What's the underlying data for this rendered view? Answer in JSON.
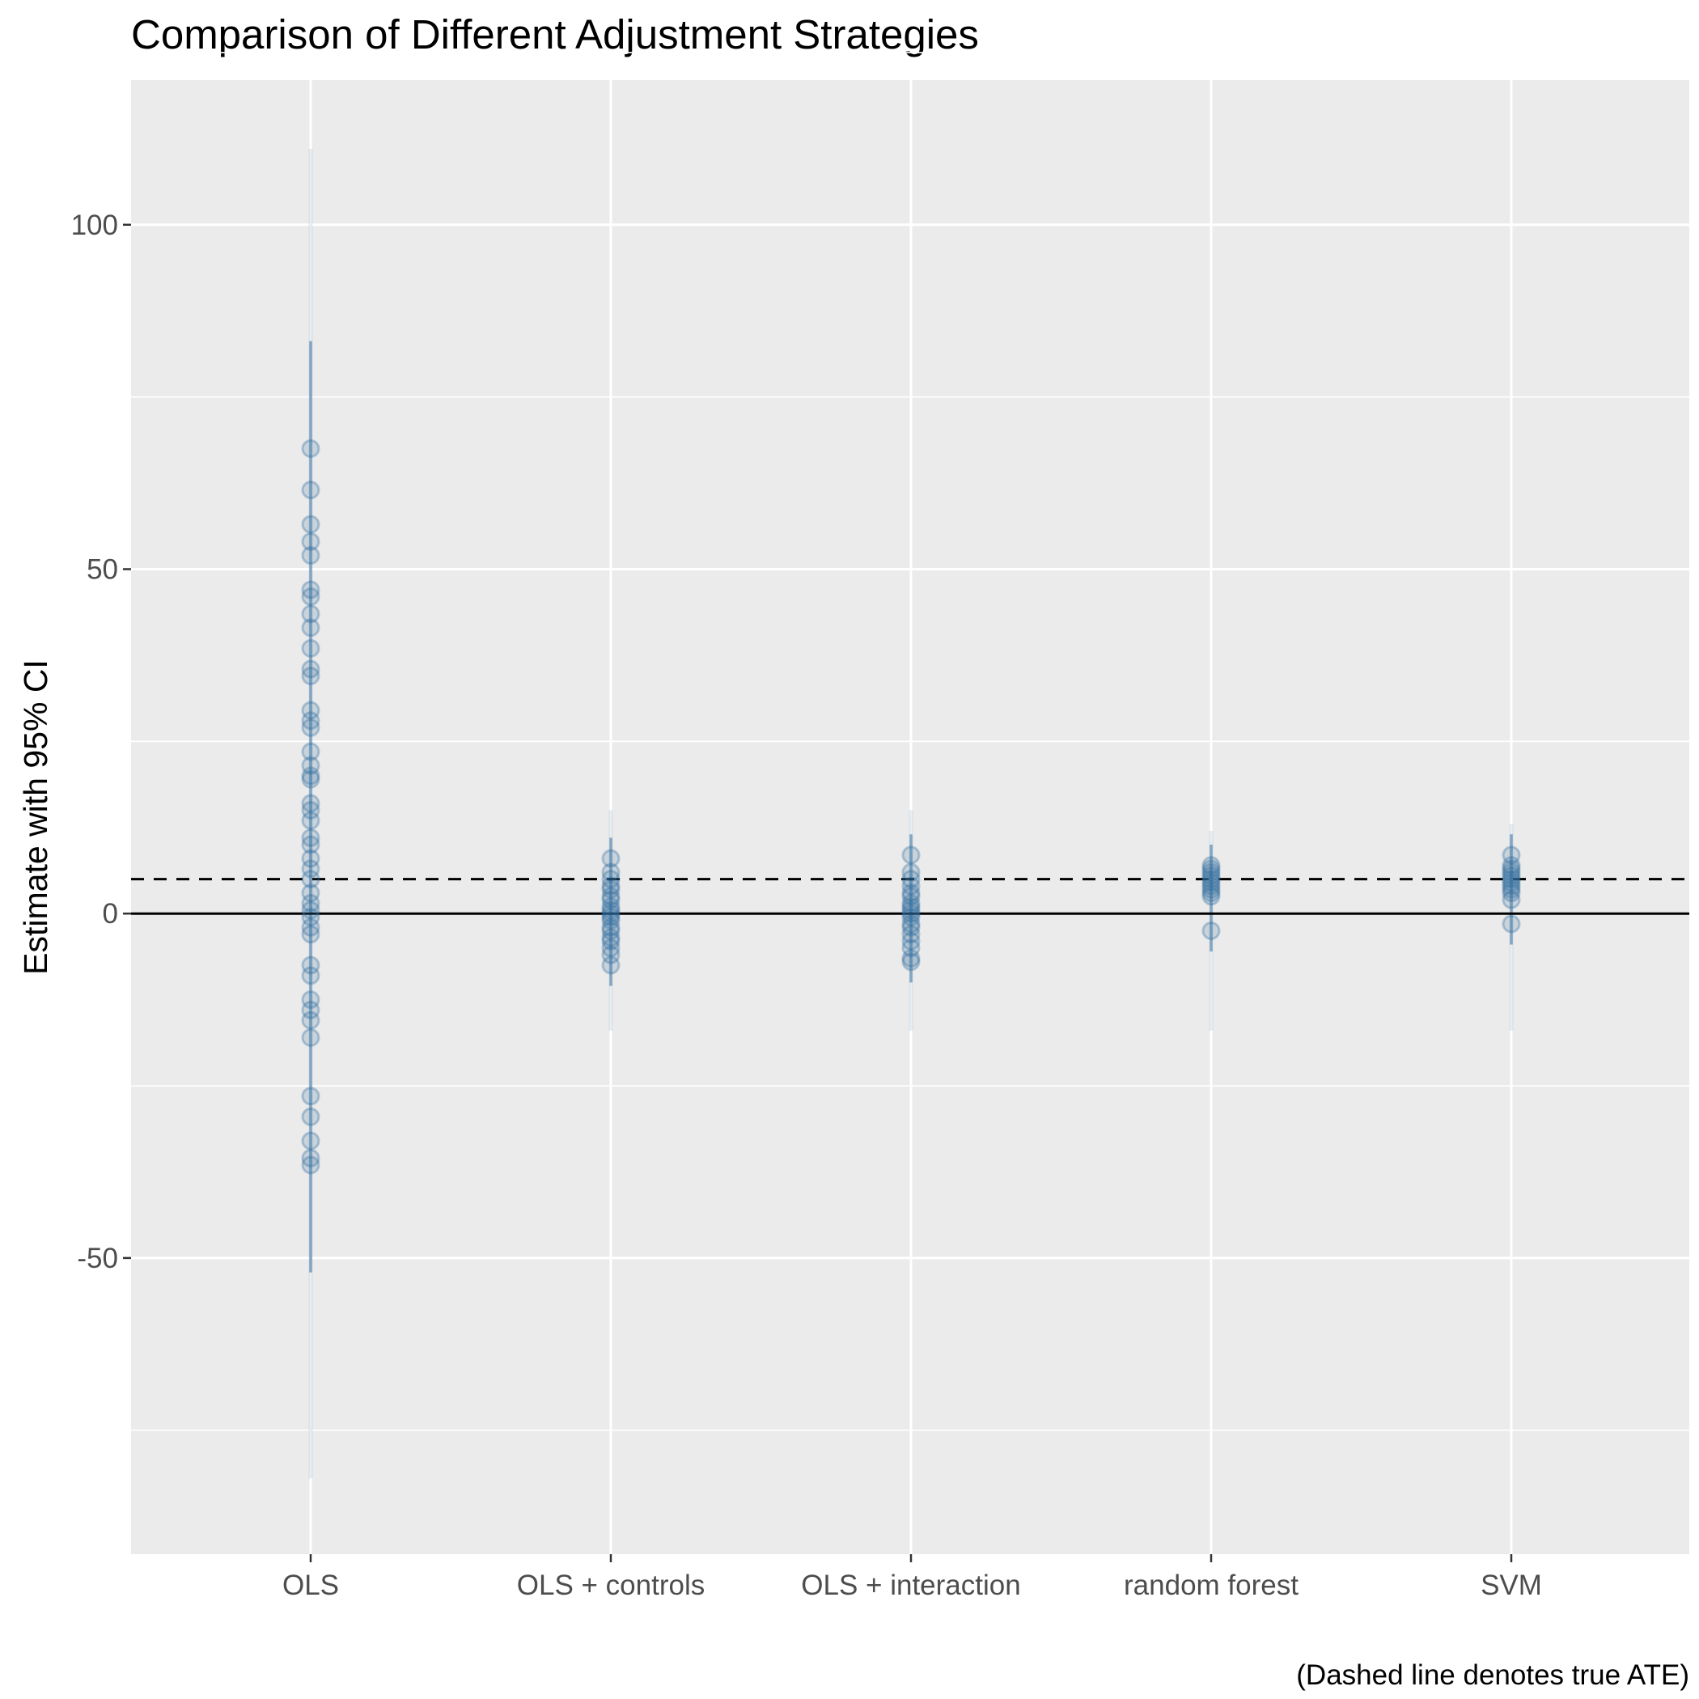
{
  "chart_data": {
    "type": "scatter",
    "title": "Comparison of Different Adjustment Strategies",
    "xlabel": "",
    "ylabel": "Estimate with 95% CI",
    "caption": "(Dashed line denotes true ATE)",
    "categories": [
      "OLS",
      "OLS + controls",
      "OLS + interaction",
      "random forest",
      "SVM"
    ],
    "y_ticks": [
      100,
      50,
      0,
      -50
    ],
    "y_tick_labels": [
      "100",
      "50",
      "0",
      "-50"
    ],
    "ylim": [
      -93,
      121
    ],
    "true_ate": 5,
    "reference_line": 0,
    "grid": true,
    "colors": {
      "panel": "#ebebeb",
      "grid": "#ffffff",
      "points": "#2f6b9a",
      "reference": "#000000"
    },
    "series": [
      {
        "category": "OLS",
        "estimates": [
          67.5,
          61.5,
          56.5,
          54.0,
          52.0,
          47.0,
          46.0,
          43.5,
          41.5,
          38.5,
          35.5,
          34.5,
          29.5,
          28.0,
          27.0,
          23.5,
          21.5,
          20.0,
          19.5,
          16.0,
          15.0,
          13.5,
          11.0,
          10.0,
          8.0,
          6.5,
          5.0,
          3.0,
          1.5,
          0.5,
          -0.5,
          -2.0,
          -3.0,
          -7.5,
          -9.0,
          -12.5,
          -14.0,
          -15.5,
          -18.0,
          -26.5,
          -29.5,
          -33.0,
          -35.5,
          -36.5
        ],
        "ci_min": -82,
        "ci_max": 111
      },
      {
        "category": "OLS + controls",
        "estimates": [
          8.0,
          6.0,
          5.0,
          4.0,
          3.5,
          2.5,
          2.0,
          1.0,
          0.5,
          0.0,
          -0.5,
          -1.0,
          -2.0,
          -2.5,
          -3.5,
          -4.0,
          -5.0,
          -6.0,
          -7.5
        ],
        "ci_min": -17,
        "ci_max": 15
      },
      {
        "category": "OLS + interaction",
        "estimates": [
          8.5,
          6.0,
          5.0,
          4.0,
          3.0,
          2.5,
          1.5,
          1.0,
          0.5,
          0.0,
          -0.5,
          -1.5,
          -2.0,
          -3.0,
          -4.0,
          -5.0,
          -6.5,
          -7.0
        ],
        "ci_min": -17,
        "ci_max": 15
      },
      {
        "category": "random forest",
        "estimates": [
          7.0,
          6.5,
          6.0,
          5.5,
          5.0,
          4.5,
          4.0,
          3.5,
          3.0,
          2.5,
          -2.5
        ],
        "ci_min": -17,
        "ci_max": 12
      },
      {
        "category": "SVM",
        "estimates": [
          8.5,
          7.0,
          6.5,
          6.0,
          5.5,
          5.0,
          4.5,
          4.0,
          3.5,
          3.0,
          2.0,
          -1.5
        ],
        "ci_min": -17,
        "ci_max": 13
      }
    ]
  }
}
